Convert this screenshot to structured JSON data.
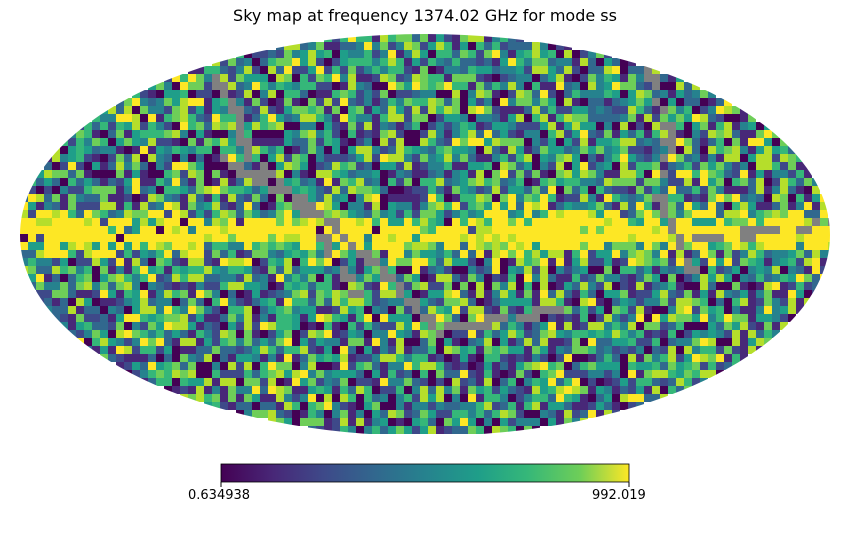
{
  "chart_data": {
    "type": "heatmap",
    "projection": "mollweide",
    "title": "Sky map at frequency 1374.02 GHz for mode ss",
    "colormap": "viridis",
    "colorbar": {
      "min_label": "0.634938",
      "max_label": "992.019",
      "min": 0.634938,
      "max": 992.019,
      "orientation": "horizontal",
      "placement": "bottom"
    },
    "masked_color": "#808080",
    "features": {
      "galactic_plane": "bright band along the equator with values near the maximum",
      "masked_regions": "grey diagonal stripes of masked pixels"
    }
  },
  "colors": {
    "masked": "#808080",
    "viridis_low": "#440154",
    "viridis_mid": "#21918c",
    "viridis_high": "#fde725"
  }
}
